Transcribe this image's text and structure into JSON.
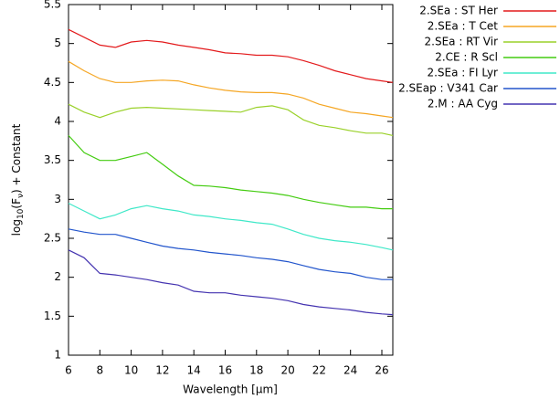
{
  "chart_data": {
    "type": "line",
    "xlabel": "Wavelength [μm]",
    "ylabel": [
      "log",
      "10",
      "(F",
      "ν",
      ") + Constant"
    ],
    "x": [
      6,
      7,
      8,
      9,
      10,
      11,
      12,
      13,
      14,
      15,
      16,
      17,
      18,
      19,
      20,
      21,
      22,
      23,
      24,
      25,
      26,
      26.7
    ],
    "xlim": [
      6,
      26.7
    ],
    "xticks": [
      6,
      8,
      10,
      12,
      14,
      16,
      18,
      20,
      22,
      24,
      26
    ],
    "ylim": [
      1,
      5.5
    ],
    "yticks": [
      1,
      1.5,
      2,
      2.5,
      3,
      3.5,
      4,
      4.5,
      5,
      5.5
    ],
    "legend": "outside-top-right",
    "series": [
      {
        "name": "2.SEa : ST Her",
        "color": "#e31a1c",
        "values": [
          5.18,
          5.08,
          4.98,
          4.95,
          5.02,
          5.04,
          5.02,
          4.98,
          4.95,
          4.92,
          4.88,
          4.87,
          4.85,
          4.85,
          4.83,
          4.78,
          4.72,
          4.65,
          4.6,
          4.55,
          4.52,
          4.5
        ]
      },
      {
        "name": "2.SEa : T Cet",
        "color": "#f5a623",
        "values": [
          4.77,
          4.65,
          4.55,
          4.5,
          4.5,
          4.52,
          4.53,
          4.52,
          4.47,
          4.43,
          4.4,
          4.38,
          4.37,
          4.37,
          4.35,
          4.3,
          4.22,
          4.17,
          4.12,
          4.1,
          4.07,
          4.05
        ]
      },
      {
        "name": "2.SEa : RT Vir",
        "color": "#9ad12a",
        "values": [
          4.22,
          4.12,
          4.05,
          4.12,
          4.17,
          4.18,
          4.17,
          4.16,
          4.15,
          4.14,
          4.13,
          4.12,
          4.18,
          4.2,
          4.15,
          4.02,
          3.95,
          3.92,
          3.88,
          3.85,
          3.85,
          3.82
        ]
      },
      {
        "name": "2.CE : R Scl",
        "color": "#44cc11",
        "values": [
          3.82,
          3.6,
          3.5,
          3.5,
          3.55,
          3.6,
          3.45,
          3.3,
          3.18,
          3.17,
          3.15,
          3.12,
          3.1,
          3.08,
          3.05,
          3.0,
          2.96,
          2.93,
          2.9,
          2.9,
          2.88,
          2.88
        ]
      },
      {
        "name": "2.SEa : FI Lyr",
        "color": "#3fe8c8",
        "values": [
          2.95,
          2.85,
          2.75,
          2.8,
          2.88,
          2.92,
          2.88,
          2.85,
          2.8,
          2.78,
          2.75,
          2.73,
          2.7,
          2.68,
          2.62,
          2.55,
          2.5,
          2.47,
          2.45,
          2.42,
          2.38,
          2.35
        ]
      },
      {
        "name": "2.SEap : V341 Car",
        "color": "#2255cc",
        "values": [
          2.62,
          2.58,
          2.55,
          2.55,
          2.5,
          2.45,
          2.4,
          2.37,
          2.35,
          2.32,
          2.3,
          2.28,
          2.25,
          2.23,
          2.2,
          2.15,
          2.1,
          2.07,
          2.05,
          2.0,
          1.97,
          1.97
        ]
      },
      {
        "name": "2.M : AA Cyg",
        "color": "#4433b0",
        "values": [
          2.35,
          2.25,
          2.05,
          2.03,
          2.0,
          1.97,
          1.93,
          1.9,
          1.82,
          1.8,
          1.8,
          1.77,
          1.75,
          1.73,
          1.7,
          1.65,
          1.62,
          1.6,
          1.58,
          1.55,
          1.53,
          1.52
        ]
      }
    ]
  }
}
